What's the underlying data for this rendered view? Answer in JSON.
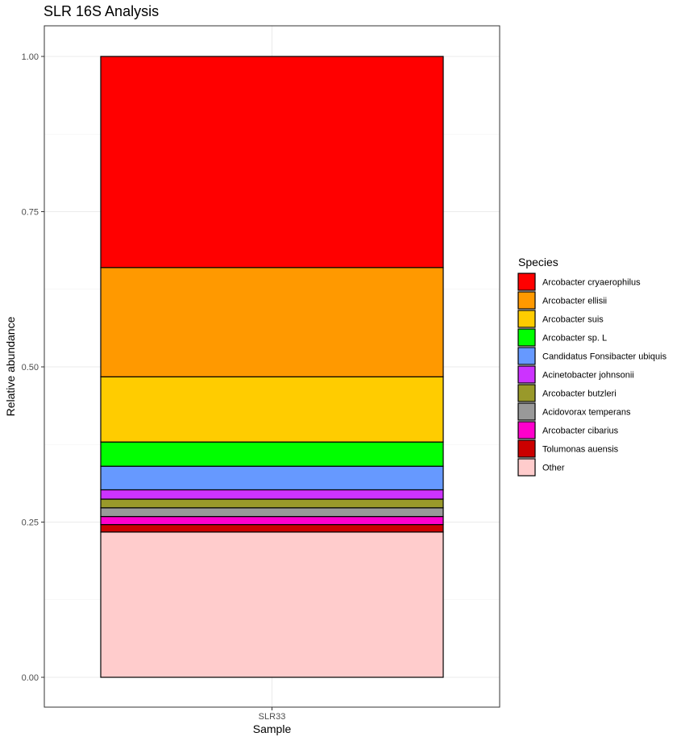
{
  "chart_data": {
    "type": "bar",
    "stacked": true,
    "title": "SLR 16S Analysis",
    "xlabel": "Sample",
    "ylabel": "Relative abundance",
    "categories": [
      "SLR33"
    ],
    "ylim": [
      0,
      1
    ],
    "yticks": [
      {
        "value": 0.0,
        "label": "0.00"
      },
      {
        "value": 0.25,
        "label": "0.25"
      },
      {
        "value": 0.5,
        "label": "0.50"
      },
      {
        "value": 0.75,
        "label": "0.75"
      },
      {
        "value": 1.0,
        "label": "1.00"
      }
    ],
    "grid": true,
    "legend_title": "Species",
    "legend_position": "right",
    "series": [
      {
        "name": "Arcobacter cryaerophilus",
        "values": [
          0.34
        ],
        "color": "#FF0000"
      },
      {
        "name": "Arcobacter ellisii",
        "values": [
          0.176
        ],
        "color": "#FF9900"
      },
      {
        "name": "Arcobacter suis",
        "values": [
          0.105
        ],
        "color": "#FFCC00"
      },
      {
        "name": "Arcobacter sp. L",
        "values": [
          0.039
        ],
        "color": "#00FF00"
      },
      {
        "name": "Candidatus Fonsibacter ubiquis",
        "values": [
          0.038
        ],
        "color": "#6699FF"
      },
      {
        "name": "Acinetobacter johnsonii",
        "values": [
          0.015
        ],
        "color": "#CC33FF"
      },
      {
        "name": "Arcobacter butzleri",
        "values": [
          0.014
        ],
        "color": "#99992A"
      },
      {
        "name": "Acidovorax temperans",
        "values": [
          0.014
        ],
        "color": "#999999"
      },
      {
        "name": "Arcobacter cibarius",
        "values": [
          0.013
        ],
        "color": "#FF00CC"
      },
      {
        "name": "Tolumonas auensis",
        "values": [
          0.012
        ],
        "color": "#CC0000"
      },
      {
        "name": "Other",
        "values": [
          0.234
        ],
        "color": "#FFCCCC"
      }
    ]
  }
}
